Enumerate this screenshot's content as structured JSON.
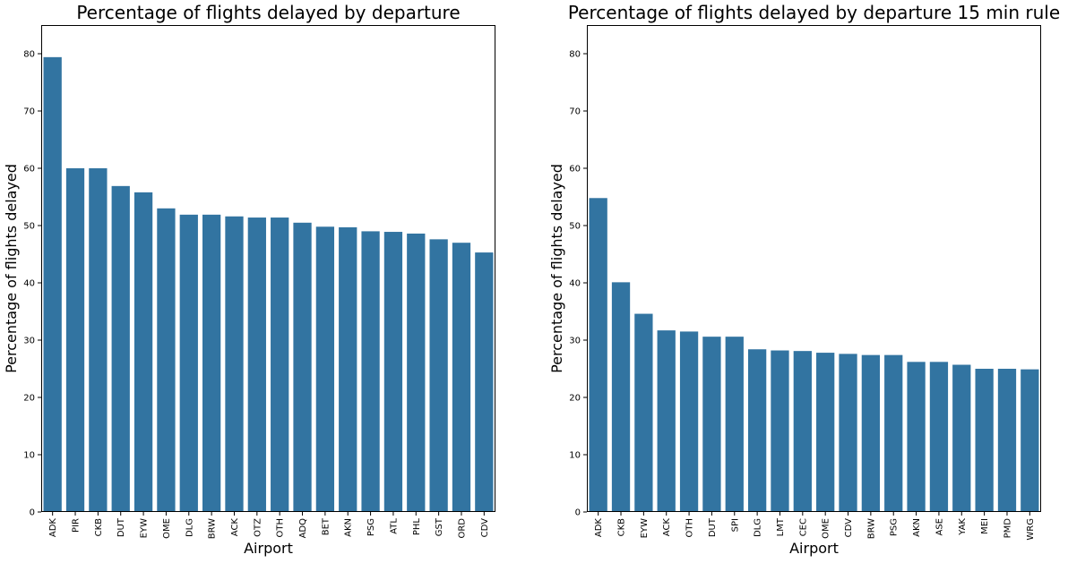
{
  "chart_data": [
    {
      "type": "bar",
      "title": "Percentage of flights delayed by departure",
      "xlabel": "Airport",
      "ylabel": "Percentage of flights delayed",
      "ylim": [
        0,
        85
      ],
      "yticks": [
        0,
        10,
        20,
        30,
        40,
        50,
        60,
        70,
        80
      ],
      "bar_color": "#3274a1",
      "categories": [
        "ADK",
        "PIR",
        "CKB",
        "DUT",
        "EYW",
        "OME",
        "DLG",
        "BRW",
        "ACK",
        "OTZ",
        "OTH",
        "ADQ",
        "BET",
        "AKN",
        "PSG",
        "ATL",
        "PHL",
        "GST",
        "ORD",
        "CDV"
      ],
      "values": [
        79.4,
        60.0,
        60.0,
        56.9,
        55.8,
        53.0,
        51.9,
        51.9,
        51.6,
        51.4,
        51.4,
        50.5,
        49.8,
        49.7,
        49.0,
        48.9,
        48.6,
        47.6,
        47.0,
        45.3
      ]
    },
    {
      "type": "bar",
      "title": "Percentage of flights delayed by departure 15 min rule",
      "xlabel": "Airport",
      "ylabel": "Percentage of flights delayed",
      "ylim": [
        0,
        85
      ],
      "yticks": [
        0,
        10,
        20,
        30,
        40,
        50,
        60,
        70,
        80
      ],
      "bar_color": "#3274a1",
      "categories": [
        "ADK",
        "CKB",
        "EYW",
        "ACK",
        "OTH",
        "DUT",
        "SPI",
        "DLG",
        "LMT",
        "CEC",
        "OME",
        "CDV",
        "BRW",
        "PSG",
        "AKN",
        "ASE",
        "YAK",
        "MEI",
        "PMD",
        "WRG"
      ],
      "values": [
        54.8,
        40.1,
        34.6,
        31.7,
        31.5,
        30.6,
        30.6,
        28.4,
        28.2,
        28.1,
        27.8,
        27.6,
        27.4,
        27.4,
        26.2,
        26.2,
        25.7,
        25.0,
        25.0,
        24.9
      ]
    }
  ]
}
